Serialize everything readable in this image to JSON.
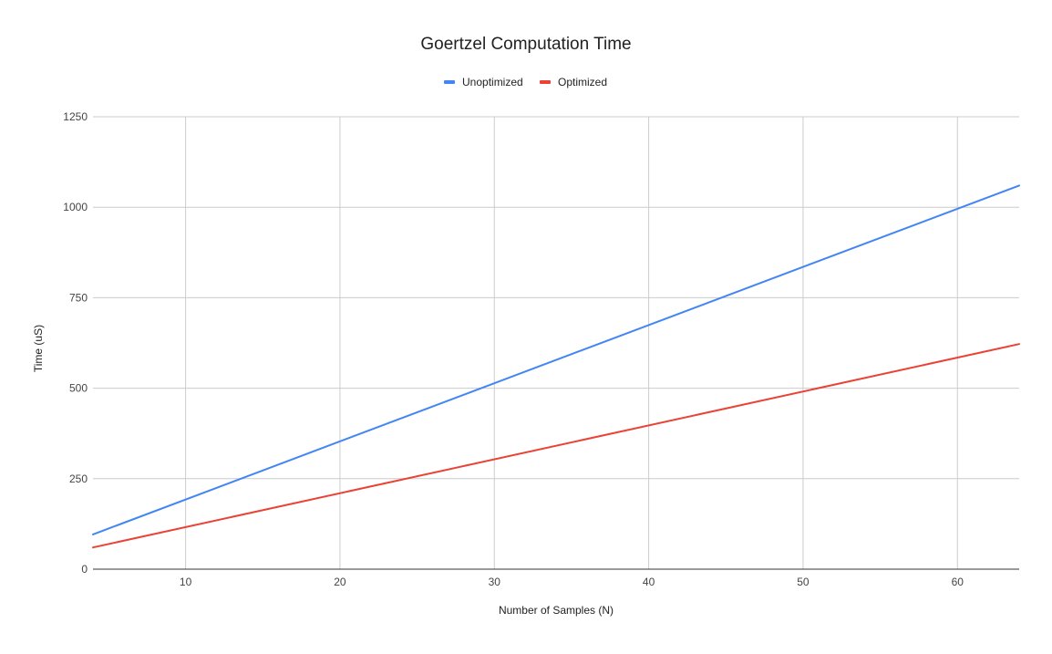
{
  "chart_data": {
    "type": "line",
    "title": "Goertzel Computation Time",
    "xlabel": "Number of Samples (N)",
    "ylabel": "Time (uS)",
    "xlim": [
      4,
      64
    ],
    "ylim": [
      0,
      1250
    ],
    "x_ticks": [
      10,
      20,
      30,
      40,
      50,
      60
    ],
    "y_ticks": [
      0,
      250,
      500,
      750,
      1000,
      1250
    ],
    "grid": true,
    "legend_position": "top-center",
    "series": [
      {
        "name": "Unoptimized",
        "color": "#4285f4",
        "x": [
          4,
          64
        ],
        "y": [
          96,
          1060
        ]
      },
      {
        "name": "Optimized",
        "color": "#ea4335",
        "x": [
          4,
          64
        ],
        "y": [
          60,
          622
        ]
      }
    ]
  }
}
